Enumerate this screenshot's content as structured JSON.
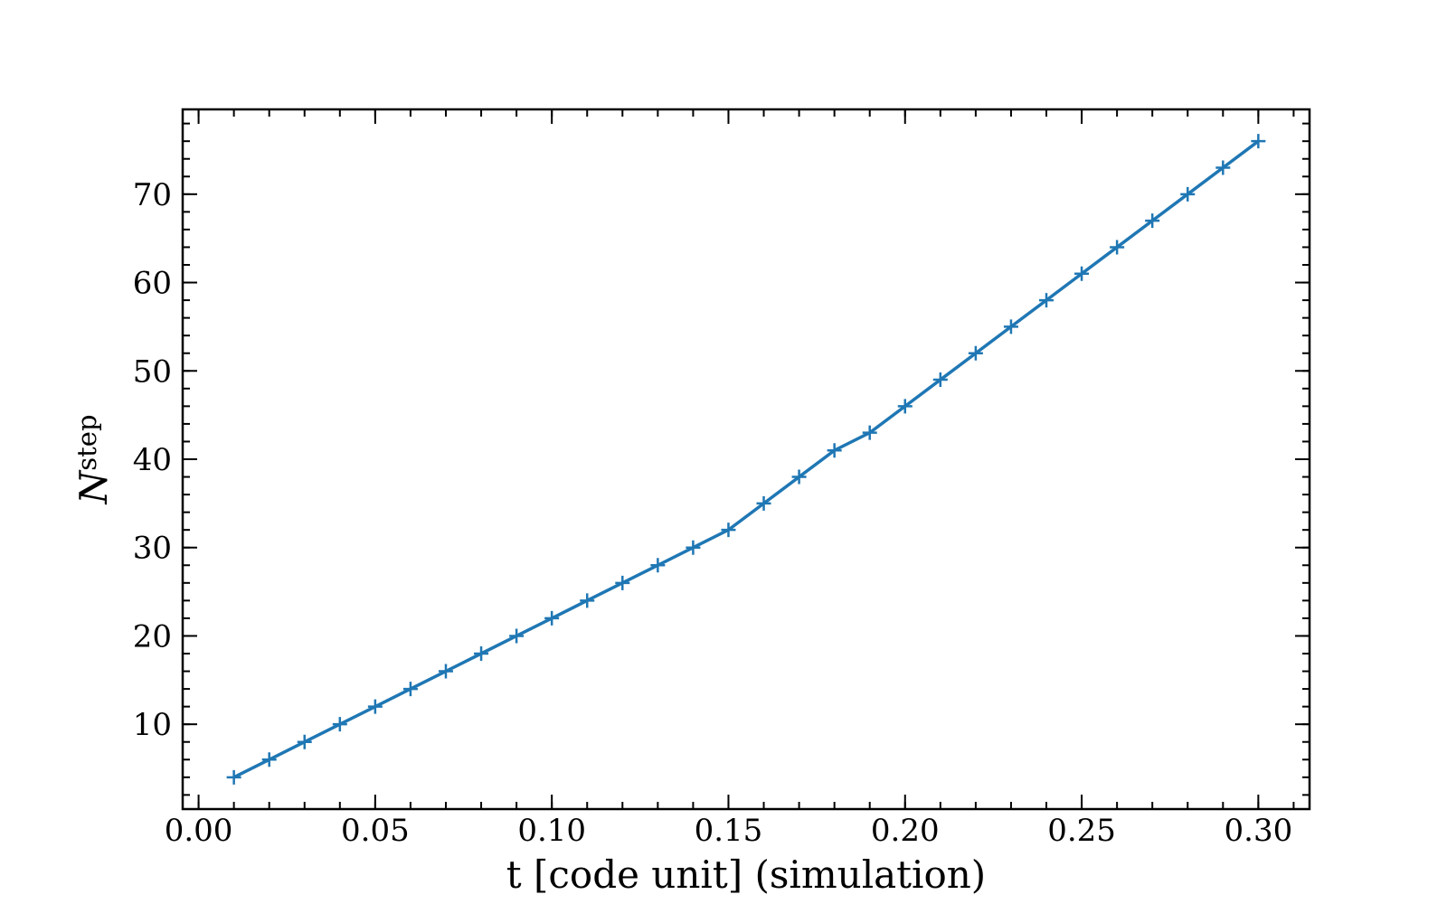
{
  "chart_data": {
    "type": "line",
    "xlabel": "t [code unit] (simulation)",
    "ylabel": "N",
    "ylabel_subscript": "step",
    "x": [
      0.01,
      0.02,
      0.03,
      0.04,
      0.05,
      0.06,
      0.07,
      0.08,
      0.09,
      0.1,
      0.11,
      0.12,
      0.13,
      0.14,
      0.15,
      0.16,
      0.17,
      0.18,
      0.19,
      0.2,
      0.21,
      0.22,
      0.23,
      0.24,
      0.25,
      0.26,
      0.27,
      0.28,
      0.29,
      0.3
    ],
    "series": [
      {
        "color": "#1f77b4",
        "marker": "+",
        "values": [
          4,
          6,
          8,
          10,
          12,
          14,
          16,
          18,
          20,
          22,
          24,
          26,
          28,
          30,
          32,
          35,
          38,
          41,
          43,
          46,
          49,
          52,
          55,
          58,
          61,
          64,
          67,
          70,
          73,
          76
        ]
      }
    ],
    "xlim": [
      -0.0045,
      0.3145
    ],
    "ylim": [
      0.4,
      79.6
    ],
    "xticks": [
      {
        "value": 0,
        "label": "0.00"
      },
      {
        "value": 0.05,
        "label": "0.05"
      },
      {
        "value": 0.1,
        "label": "0.10"
      },
      {
        "value": 0.15,
        "label": "0.15"
      },
      {
        "value": 0.2,
        "label": "0.20"
      },
      {
        "value": 0.25,
        "label": "0.25"
      },
      {
        "value": 0.3,
        "label": "0.30"
      }
    ],
    "yticks": [
      10,
      20,
      30,
      40,
      50,
      60,
      70
    ],
    "grid": false
  }
}
